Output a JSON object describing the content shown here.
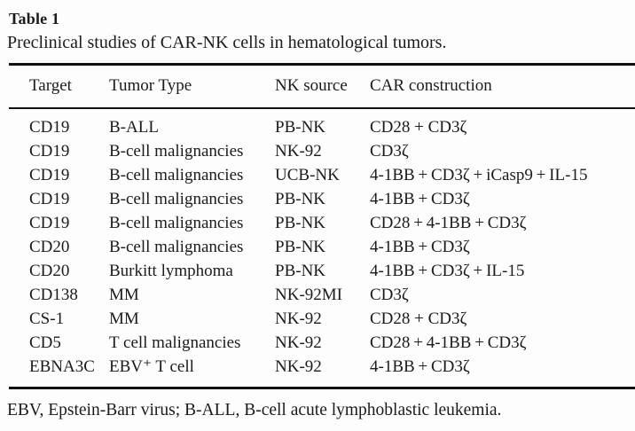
{
  "table": {
    "label": "Table 1",
    "caption": "Preclinical studies of CAR-NK cells in hematological tumors.",
    "columns": [
      "Target",
      "Tumor Type",
      "NK source",
      "CAR construction"
    ],
    "rows": [
      [
        "CD19",
        "B-ALL",
        "PB-NK",
        "CD28 + CD3ζ"
      ],
      [
        "CD19",
        "B-cell malignancies",
        "NK-92",
        "CD3ζ"
      ],
      [
        "CD19",
        "B-cell malignancies",
        "UCB-NK",
        "4-1BB + CD3ζ + iCasp9 + IL-15"
      ],
      [
        "CD19",
        "B-cell malignancies",
        "PB-NK",
        "4-1BB + CD3ζ"
      ],
      [
        "CD19",
        "B-cell malignancies",
        "PB-NK",
        "CD28 + 4-1BB + CD3ζ"
      ],
      [
        "CD20",
        "B-cell malignancies",
        "PB-NK",
        "4-1BB + CD3ζ"
      ],
      [
        "CD20",
        "Burkitt lymphoma",
        "PB-NK",
        "4-1BB + CD3ζ + IL-15"
      ],
      [
        "CD138",
        "MM",
        "NK-92MI",
        "CD3ζ"
      ],
      [
        "CS-1",
        "MM",
        "NK-92",
        "CD28 + CD3ζ"
      ],
      [
        "CD5",
        "T cell malignancies",
        "NK-92",
        "CD28 + 4-1BB + CD3ζ"
      ],
      [
        "EBNA3C",
        "EBV⁺ T cell",
        "NK-92",
        "4-1BB + CD3ζ"
      ]
    ],
    "footnote": "EBV, Epstein-Barr virus; B-ALL, B-cell acute lymphoblastic leukemia."
  },
  "colors": {
    "background": "#fdfdfd",
    "text": "#1b1b1b",
    "rule": "#101010"
  }
}
